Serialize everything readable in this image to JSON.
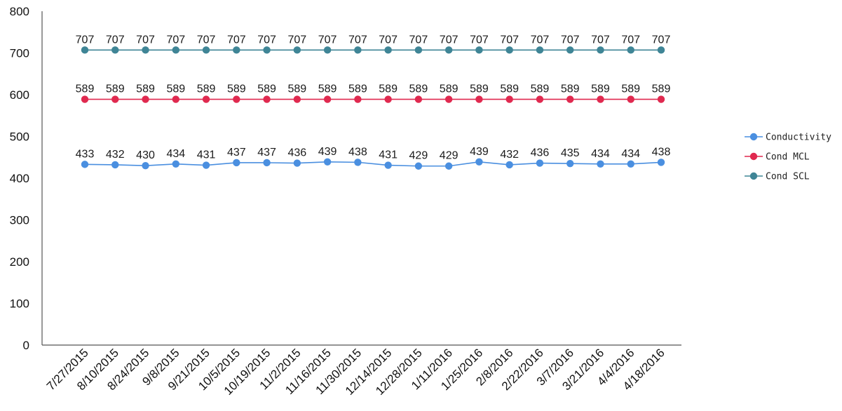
{
  "chart_data": {
    "type": "line",
    "categories": [
      "7/27/2015",
      "8/10/2015",
      "8/24/2015",
      "9/8/2015",
      "9/21/2015",
      "10/5/2015",
      "10/19/2015",
      "11/2/2015",
      "11/16/2015",
      "11/30/2015",
      "12/14/2015",
      "12/28/2015",
      "1/11/2016",
      "1/25/2016",
      "2/8/2016",
      "2/22/2016",
      "3/7/2016",
      "3/21/2016",
      "4/4/2016",
      "4/18/2016"
    ],
    "series": [
      {
        "name": "Conductivity",
        "color": "#4a8fe0",
        "values": [
          433,
          432,
          430,
          434,
          431,
          437,
          437,
          436,
          439,
          438,
          431,
          429,
          429,
          439,
          432,
          436,
          435,
          434,
          434,
          438
        ]
      },
      {
        "name": "Cond MCL",
        "color": "#e0294f",
        "values": [
          589,
          589,
          589,
          589,
          589,
          589,
          589,
          589,
          589,
          589,
          589,
          589,
          589,
          589,
          589,
          589,
          589,
          589,
          589,
          589
        ]
      },
      {
        "name": "Cond SCL",
        "color": "#3f8596",
        "values": [
          707,
          707,
          707,
          707,
          707,
          707,
          707,
          707,
          707,
          707,
          707,
          707,
          707,
          707,
          707,
          707,
          707,
          707,
          707,
          707
        ]
      }
    ],
    "yticks": [
      0,
      100,
      200,
      300,
      400,
      500,
      600,
      700,
      800
    ],
    "ylim": [
      0,
      800
    ],
    "title": "",
    "xlabel": "",
    "ylabel": "",
    "grid": false,
    "legend_position": "right"
  }
}
